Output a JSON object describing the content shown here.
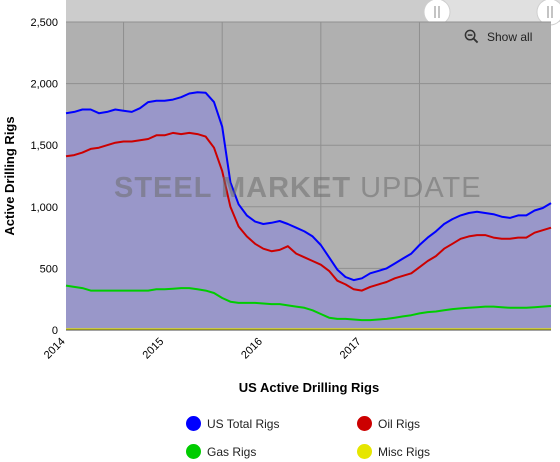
{
  "chart_data": {
    "type": "area",
    "title": "",
    "xlabel": "US Active Drilling Rigs",
    "ylabel": "Active Drilling Rigs",
    "x_range": [
      "2013-06",
      "2018-05"
    ],
    "ylim": [
      0,
      2500
    ],
    "y_ticks": [
      0,
      500,
      1000,
      1500,
      2000,
      2500
    ],
    "y_tick_labels": [
      "0",
      "500",
      "1,000",
      "1,500",
      "2,000",
      "2,500"
    ],
    "x_ticks": [
      "2014-01",
      "2015-01",
      "2016-01",
      "2017-01"
    ],
    "x_tick_labels": [
      "2014",
      "2015",
      "2016",
      "2017"
    ],
    "grid": true,
    "legend_position": "bottom",
    "x": [
      "2013-06",
      "2013-07",
      "2013-08",
      "2013-09",
      "2013-10",
      "2013-11",
      "2013-12",
      "2014-01",
      "2014-02",
      "2014-03",
      "2014-04",
      "2014-05",
      "2014-06",
      "2014-07",
      "2014-08",
      "2014-09",
      "2014-10",
      "2014-11",
      "2014-12",
      "2015-01",
      "2015-02",
      "2015-03",
      "2015-04",
      "2015-05",
      "2015-06",
      "2015-07",
      "2015-08",
      "2015-09",
      "2015-10",
      "2015-11",
      "2015-12",
      "2016-01",
      "2016-02",
      "2016-03",
      "2016-04",
      "2016-05",
      "2016-06",
      "2016-07",
      "2016-08",
      "2016-09",
      "2016-10",
      "2016-11",
      "2016-12",
      "2017-01",
      "2017-02",
      "2017-03",
      "2017-04",
      "2017-05",
      "2017-06",
      "2017-07",
      "2017-08",
      "2017-09",
      "2017-10",
      "2017-11",
      "2017-12",
      "2018-01",
      "2018-02",
      "2018-03",
      "2018-04",
      "2018-05"
    ],
    "series": [
      {
        "name": "US Total Rigs",
        "color": "#0000ff",
        "values": [
          1760,
          1770,
          1790,
          1790,
          1760,
          1770,
          1790,
          1780,
          1770,
          1800,
          1850,
          1860,
          1860,
          1870,
          1890,
          1920,
          1930,
          1925,
          1850,
          1650,
          1200,
          1020,
          930,
          880,
          860,
          870,
          885,
          860,
          830,
          800,
          760,
          690,
          590,
          490,
          430,
          405,
          420,
          460,
          480,
          500,
          540,
          580,
          620,
          690,
          750,
          800,
          860,
          900,
          930,
          950,
          960,
          950,
          940,
          920,
          910,
          930,
          930,
          970,
          990,
          1030
        ]
      },
      {
        "name": "Oil Rigs",
        "color": "#cc0000",
        "values": [
          1410,
          1420,
          1440,
          1470,
          1480,
          1500,
          1520,
          1530,
          1530,
          1540,
          1550,
          1580,
          1580,
          1600,
          1590,
          1600,
          1590,
          1570,
          1480,
          1290,
          1000,
          840,
          760,
          700,
          660,
          640,
          650,
          680,
          620,
          590,
          560,
          530,
          480,
          400,
          370,
          330,
          320,
          350,
          370,
          390,
          420,
          440,
          460,
          510,
          560,
          600,
          660,
          700,
          740,
          760,
          770,
          770,
          750,
          740,
          740,
          750,
          750,
          790,
          810,
          830
        ]
      },
      {
        "name": "Gas Rigs",
        "color": "#00cc00",
        "values": [
          360,
          350,
          340,
          320,
          320,
          320,
          320,
          320,
          320,
          320,
          320,
          330,
          330,
          335,
          340,
          340,
          330,
          320,
          300,
          260,
          230,
          220,
          220,
          220,
          215,
          210,
          210,
          200,
          190,
          180,
          160,
          130,
          100,
          90,
          90,
          85,
          80,
          80,
          85,
          90,
          100,
          110,
          120,
          135,
          145,
          150,
          160,
          170,
          175,
          180,
          185,
          190,
          190,
          185,
          180,
          180,
          180,
          185,
          190,
          195
        ]
      },
      {
        "name": "Misc Rigs",
        "color": "#e6e600",
        "values": [
          5,
          5,
          5,
          5,
          5,
          5,
          5,
          5,
          5,
          5,
          5,
          5,
          5,
          5,
          5,
          5,
          5,
          5,
          5,
          5,
          5,
          5,
          5,
          5,
          5,
          5,
          5,
          5,
          5,
          5,
          5,
          5,
          5,
          5,
          5,
          5,
          5,
          5,
          5,
          5,
          5,
          5,
          5,
          5,
          5,
          5,
          5,
          5,
          5,
          5,
          5,
          5,
          5,
          5,
          5,
          5,
          5,
          5,
          5,
          5
        ]
      }
    ]
  },
  "toolbar": {
    "show_all_label": "Show all",
    "zoom_icon": "zoom-out-icon"
  },
  "watermark": {
    "bold_text": "STEEL",
    "bold_text_2": "MARKET",
    "thin_text": "UPDATE"
  },
  "colors": {
    "plot_fill": "#9997c9",
    "plot_background": "#b0b0b0",
    "scroll_bar": "#cccccc"
  }
}
